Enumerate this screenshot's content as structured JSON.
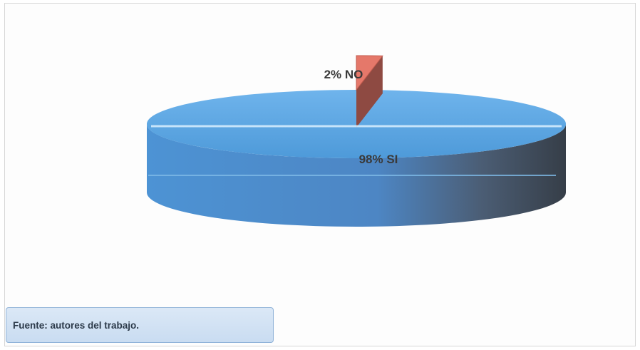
{
  "chart_data": {
    "type": "pie",
    "slices": [
      {
        "label": "2% NO",
        "value": 2,
        "color": "#e5786a"
      },
      {
        "label": "98% SI",
        "value": 98,
        "color": "#5fa8e4"
      }
    ]
  },
  "source_note": "Fuente: autores del trabajo."
}
